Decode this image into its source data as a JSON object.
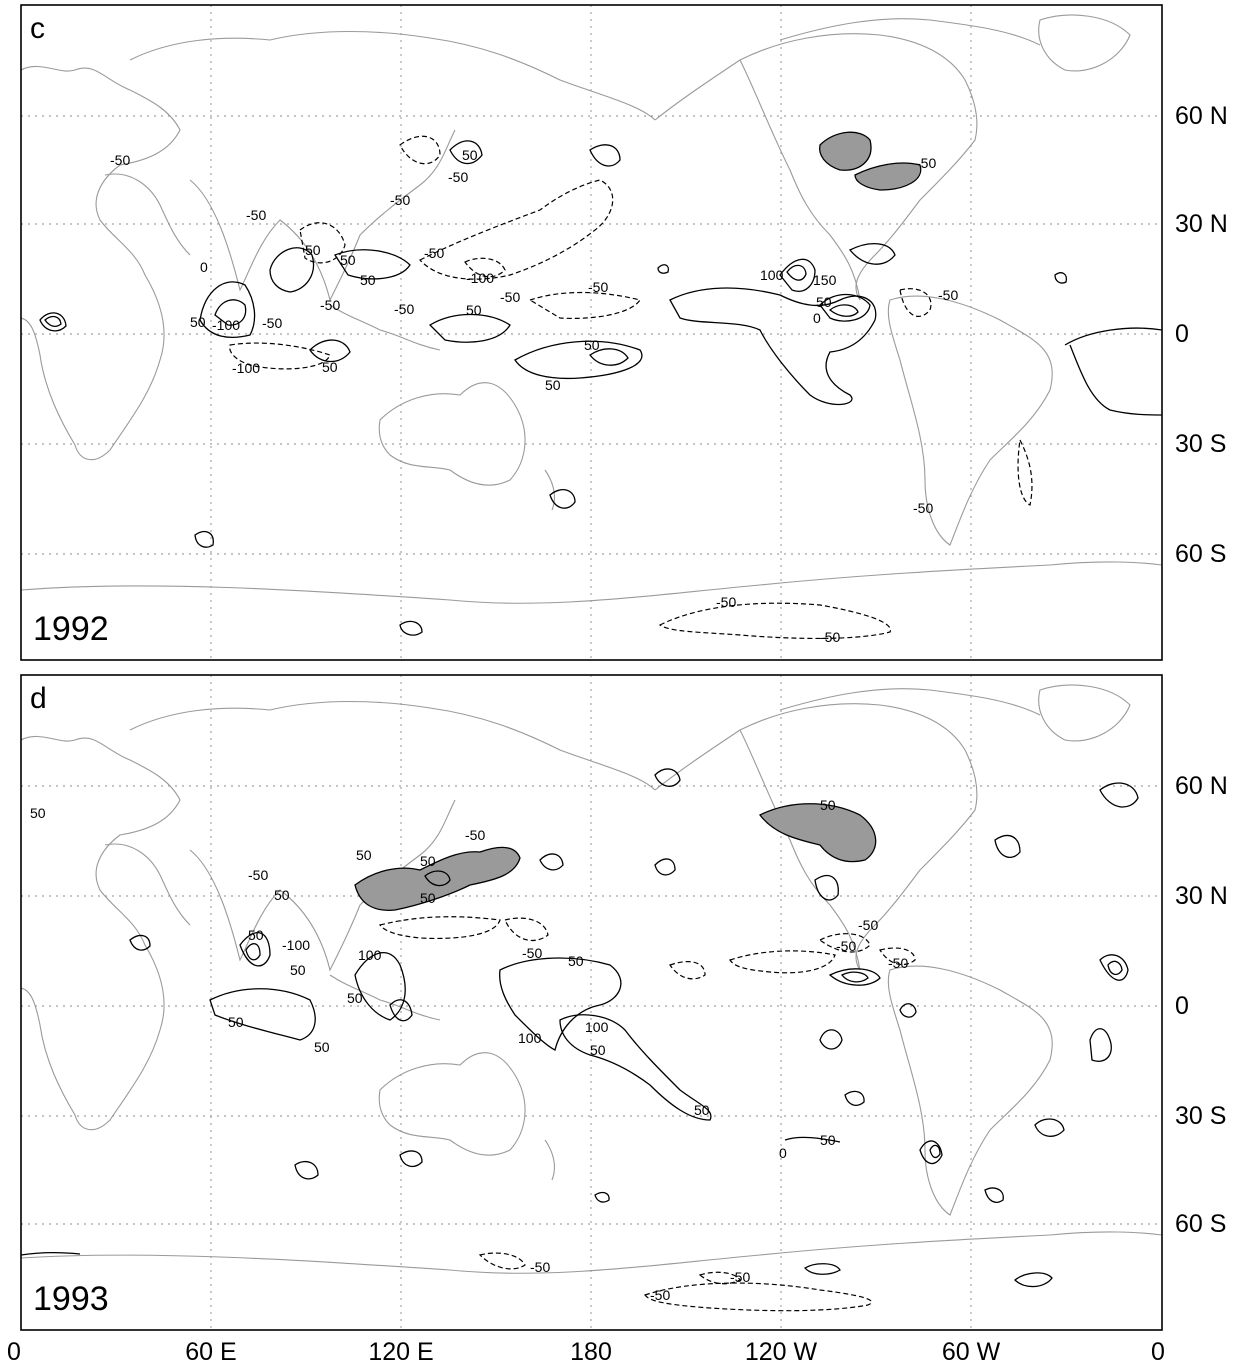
{
  "figure": {
    "lat_labels": [
      "60 N",
      "30 N",
      "0",
      "30 S",
      "60 S"
    ],
    "lon_labels": [
      "0",
      "60 E",
      "120 E",
      "180",
      "120 W",
      "60 W",
      "0"
    ],
    "panels": [
      {
        "letter": "c",
        "year": "1992",
        "contour_labels": [
          "-50",
          "50",
          "-50",
          "-50",
          "-50",
          "50",
          "0",
          "-100",
          "50",
          "50",
          "-100",
          "-50",
          "-50",
          "50",
          "-50",
          "100",
          "150",
          "50",
          "0",
          "-50",
          "50",
          "50",
          "-50",
          "-50",
          "-50",
          "-100",
          "-50",
          "-50",
          "-50",
          "50",
          "50",
          "-50"
        ]
      },
      {
        "letter": "d",
        "year": "1993",
        "contour_labels": [
          "50",
          "-50",
          "50",
          "50",
          "-50",
          "50",
          "-100",
          "100",
          "50",
          "50",
          "50",
          "50",
          "50",
          "-50",
          "50",
          "100",
          "100",
          "50",
          "50",
          "50",
          "-50",
          "-50",
          "-50",
          "50",
          "50",
          "0",
          "-50",
          "-50",
          "-50"
        ]
      }
    ]
  }
}
